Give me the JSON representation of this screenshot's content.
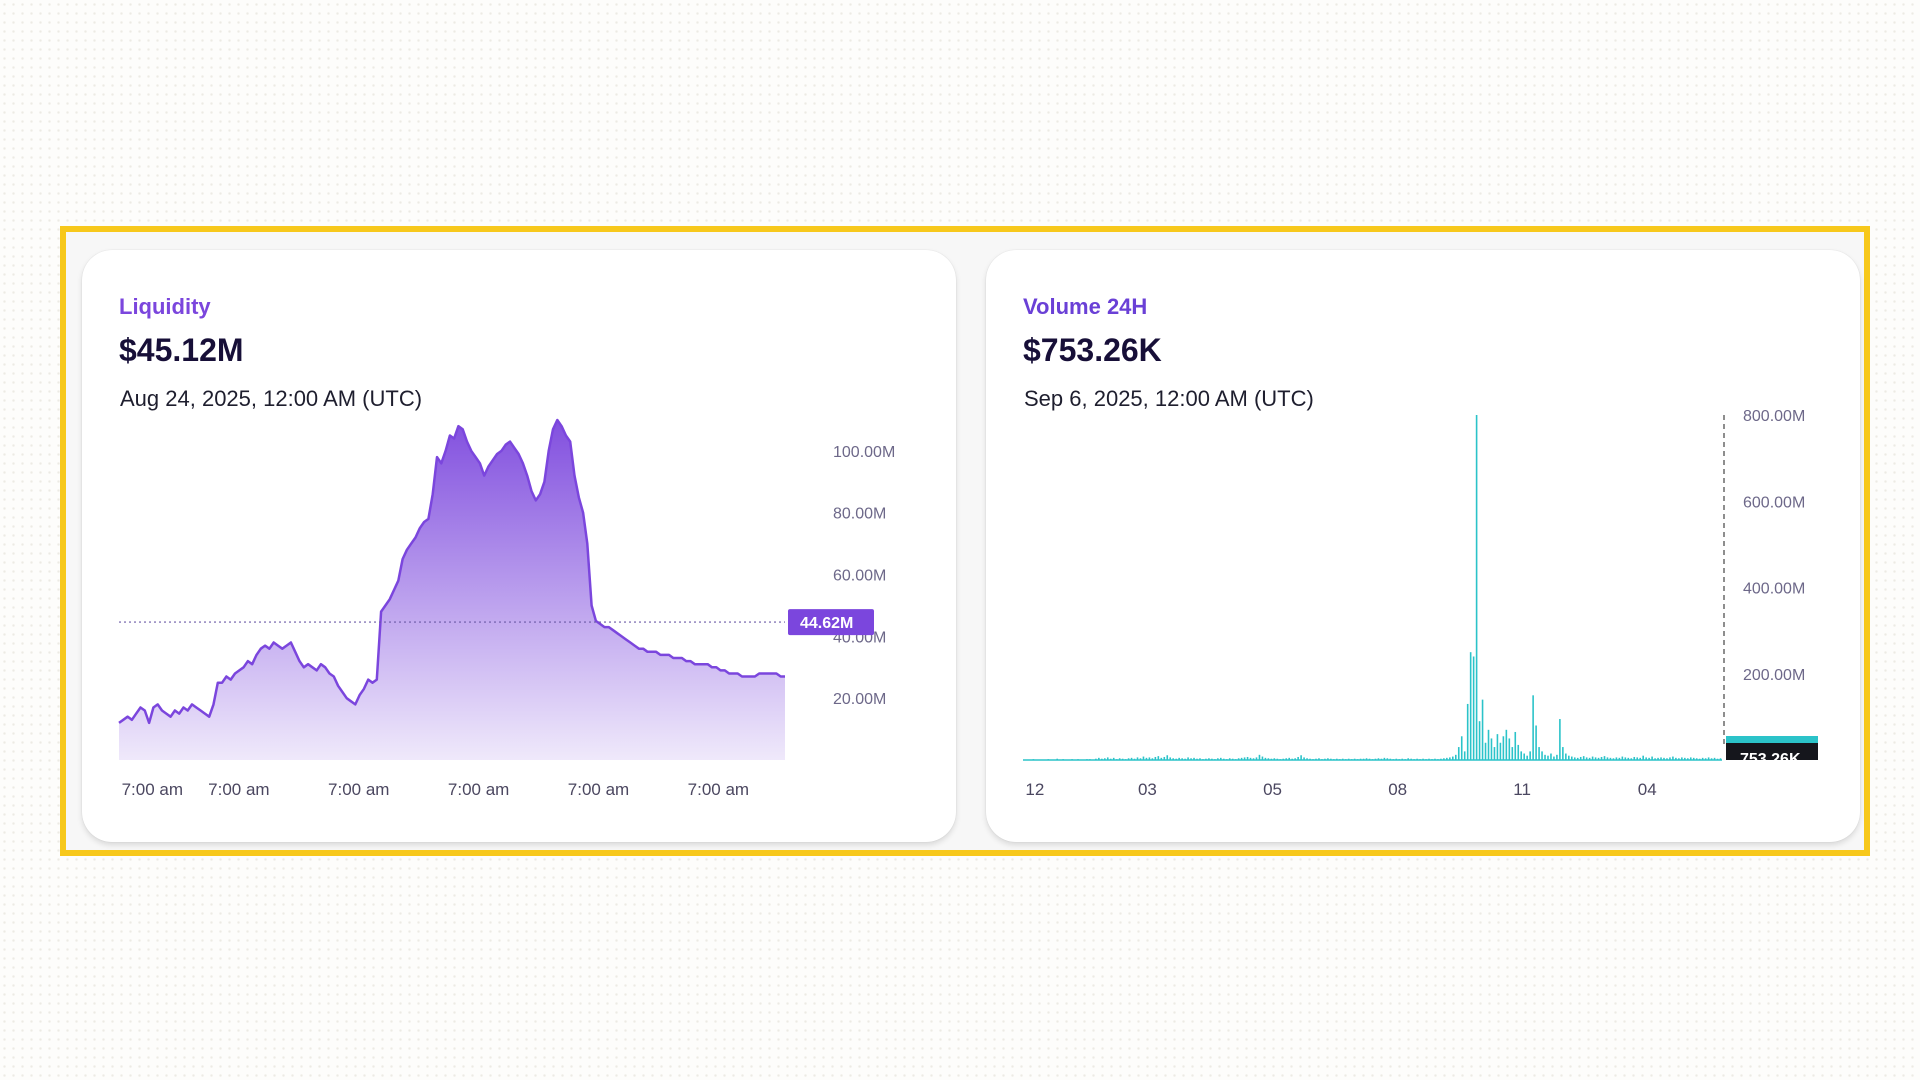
{
  "cards": [
    {
      "label": "Liquidity",
      "value": "$45.12M",
      "date": "Aug 24, 2025, 12:00 AM (UTC)"
    },
    {
      "label": "Volume 24H",
      "value": "$753.26K",
      "date": "Sep 6, 2025, 12:00 AM (UTC)"
    }
  ],
  "chart_data": [
    {
      "type": "area",
      "color": "#7b46dd",
      "ylim": [
        0,
        110
      ],
      "yticks": [
        {
          "value": 20,
          "label": "20.00M"
        },
        {
          "value": 40,
          "label": "40.00M"
        },
        {
          "value": 60,
          "label": "60.00M"
        },
        {
          "value": 80,
          "label": "80.00M"
        },
        {
          "value": 100,
          "label": "100.00M"
        }
      ],
      "xticks": [
        {
          "x": 0.05,
          "label": "7:00 am"
        },
        {
          "x": 0.18,
          "label": "7:00 am"
        },
        {
          "x": 0.36,
          "label": "7:00 am"
        },
        {
          "x": 0.54,
          "label": "7:00 am"
        },
        {
          "x": 0.72,
          "label": "7:00 am"
        },
        {
          "x": 0.9,
          "label": "7:00 am"
        }
      ],
      "current": {
        "value": 44.62,
        "label": "44.62M"
      },
      "series": [
        {
          "values": [
            12,
            13,
            14,
            13,
            15,
            17,
            16,
            12,
            17,
            18,
            16,
            15,
            14,
            16,
            15,
            17,
            16,
            18,
            17,
            16,
            15,
            14,
            18,
            25,
            25,
            27,
            26,
            28,
            29,
            30,
            32,
            31,
            34,
            36,
            37,
            36,
            38,
            37,
            36,
            37,
            38,
            35,
            32,
            30,
            31,
            30,
            29,
            31,
            30,
            28,
            27,
            24,
            22,
            20,
            19,
            18,
            21,
            23,
            26,
            25,
            26,
            48,
            50,
            52,
            55,
            58,
            65,
            68,
            70,
            72,
            75,
            77,
            78,
            86,
            98,
            96,
            100,
            105,
            104,
            108,
            107,
            103,
            100,
            98,
            96,
            92,
            95,
            97,
            99,
            100,
            102,
            103,
            101,
            99,
            96,
            92,
            87,
            84,
            86,
            90,
            100,
            107,
            110,
            108,
            105,
            103,
            92,
            85,
            80,
            70,
            50,
            45,
            44,
            43,
            43,
            42,
            41,
            40,
            39,
            38,
            37,
            36,
            36,
            35,
            35,
            35,
            34,
            34,
            34,
            33,
            33,
            33,
            32,
            32,
            31,
            31,
            31,
            31,
            30,
            30,
            29,
            29,
            28,
            28,
            28,
            27,
            27,
            27,
            27,
            28,
            28,
            28,
            28,
            28,
            27,
            27
          ]
        }
      ]
    },
    {
      "type": "bar",
      "color": "#2bc3c9",
      "ylim": [
        0,
        800
      ],
      "yticks": [
        {
          "value": 200,
          "label": "200.00M"
        },
        {
          "value": 400,
          "label": "400.00M"
        },
        {
          "value": 600,
          "label": "600.00M"
        },
        {
          "value": 800,
          "label": "800.00M"
        }
      ],
      "xticks": [
        {
          "x": 0.017,
          "label": "12"
        },
        {
          "x": 0.178,
          "label": "03"
        },
        {
          "x": 0.357,
          "label": "05"
        },
        {
          "x": 0.536,
          "label": "08"
        },
        {
          "x": 0.714,
          "label": "11"
        },
        {
          "x": 0.893,
          "label": "04"
        }
      ],
      "current": {
        "value": 0.75326,
        "label": "753.26K"
      },
      "series": [
        {
          "values": [
            1,
            1,
            1,
            2,
            1,
            1,
            1,
            1,
            2,
            1,
            1,
            3,
            1,
            2,
            1,
            1,
            2,
            1,
            2,
            1,
            1,
            2,
            2,
            1,
            3,
            5,
            3,
            4,
            6,
            3,
            5,
            2,
            4,
            3,
            2,
            4,
            5,
            3,
            6,
            4,
            8,
            5,
            6,
            4,
            7,
            9,
            5,
            7,
            11,
            6,
            4,
            3,
            5,
            4,
            3,
            6,
            4,
            5,
            3,
            4,
            2,
            3,
            4,
            3,
            2,
            4,
            5,
            3,
            2,
            4,
            3,
            2,
            4,
            5,
            6,
            7,
            5,
            4,
            6,
            12,
            8,
            5,
            4,
            3,
            4,
            3,
            2,
            3,
            4,
            5,
            3,
            4,
            7,
            11,
            6,
            4,
            3,
            2,
            3,
            4,
            2,
            3,
            4,
            3,
            2,
            3,
            2,
            3,
            2,
            3,
            2,
            3,
            2,
            3,
            3,
            4,
            3,
            2,
            3,
            4,
            3,
            5,
            4,
            3,
            2,
            3,
            2,
            3,
            2,
            4,
            3,
            2,
            3,
            2,
            3,
            2,
            3,
            2,
            3,
            2,
            3,
            4,
            5,
            6,
            8,
            12,
            30,
            55,
            20,
            130,
            250,
            240,
            800,
            90,
            140,
            40,
            70,
            50,
            30,
            60,
            40,
            55,
            70,
            50,
            30,
            65,
            35,
            20,
            15,
            10,
            20,
            150,
            80,
            30,
            20,
            12,
            10,
            15,
            8,
            12,
            95,
            30,
            15,
            10,
            8,
            6,
            5,
            7,
            9,
            6,
            5,
            8,
            6,
            5,
            7,
            9,
            6,
            5,
            4,
            6,
            5,
            8,
            6,
            5,
            4,
            7,
            6,
            5,
            10,
            6,
            5,
            8,
            4,
            5,
            6,
            5,
            4,
            6,
            8,
            5,
            4,
            6,
            5,
            4,
            6,
            5,
            4,
            3,
            5,
            4,
            6,
            4,
            5,
            3,
            4
          ]
        }
      ]
    }
  ]
}
